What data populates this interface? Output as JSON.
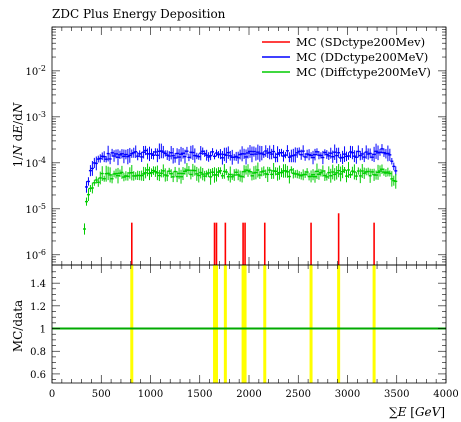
{
  "chart_data": [
    {
      "type": "line",
      "panel": "main",
      "title": "ZDC Plus Energy Deposition",
      "ylabel": "1/N dE/dN",
      "yscale": "log",
      "ylim": [
        6e-07,
        0.09
      ],
      "xlim": [
        0,
        4000
      ],
      "y_tick_labels": [
        "10^-6",
        "10^-5",
        "10^-4",
        "10^-3",
        "10^-2"
      ],
      "legend_position": "top-right",
      "series": [
        {
          "name": "MC (SDctype200Mev)",
          "color": "#ff0000",
          "x": [
            810,
            1650,
            1670,
            1760,
            1940,
            1960,
            2160,
            2630,
            2910,
            3270
          ],
          "y": [
            5e-06,
            5e-06,
            5e-06,
            5e-06,
            5e-06,
            5e-06,
            5e-06,
            5e-06,
            8e-06,
            5e-06
          ]
        },
        {
          "name": "MC (DDctype200MeV)",
          "color": "#0000ff",
          "x_start": 350,
          "x_end": 3500,
          "x_step": 20,
          "x": [
            350,
            400,
            500,
            750,
            1000,
            1250,
            1500,
            1750,
            2000,
            2250,
            2500,
            2750,
            3000,
            3250,
            3400,
            3500
          ],
          "y": [
            3e-05,
            8.5e-05,
            0.00013,
            0.00016,
            0.00016,
            0.000155,
            0.00016,
            0.000155,
            0.000155,
            0.000155,
            0.00016,
            0.00015,
            0.00015,
            0.000155,
            0.00019,
            6e-05
          ]
        },
        {
          "name": "MC (Diffctype200MeV)",
          "color": "#00cc00",
          "x_start": 330,
          "x_end": 3500,
          "x_step": 20,
          "x": [
            330,
            350,
            400,
            500,
            750,
            1000,
            1250,
            1500,
            1750,
            2000,
            2250,
            2500,
            2750,
            3000,
            3250,
            3400,
            3500
          ],
          "y": [
            4e-06,
            1.4e-05,
            3.3e-05,
            5e-05,
            6e-05,
            6.2e-05,
            6e-05,
            6e-05,
            6e-05,
            6e-05,
            6e-05,
            6e-05,
            5.8e-05,
            6e-05,
            6e-05,
            7e-05,
            3.5e-05
          ]
        }
      ]
    },
    {
      "type": "line",
      "panel": "ratio",
      "ylabel": "MC/data",
      "xlabel": "∑E [GeV]",
      "xlim": [
        0,
        4000
      ],
      "ylim": [
        0.52,
        1.56
      ],
      "x_tick_labels": [
        "0",
        "500",
        "1000",
        "1500",
        "2000",
        "2500",
        "3000",
        "3500",
        "4000"
      ],
      "y_tick_labels": [
        "0.6",
        "0.8",
        "1",
        "1.2",
        "1.4"
      ],
      "reference_line": {
        "y": 1,
        "color": "#00aa00"
      },
      "highlight_bars": {
        "color": "#ffff00",
        "x": [
          810,
          1650,
          1670,
          1760,
          1940,
          1960,
          2160,
          2630,
          2910,
          3270
        ]
      }
    }
  ]
}
